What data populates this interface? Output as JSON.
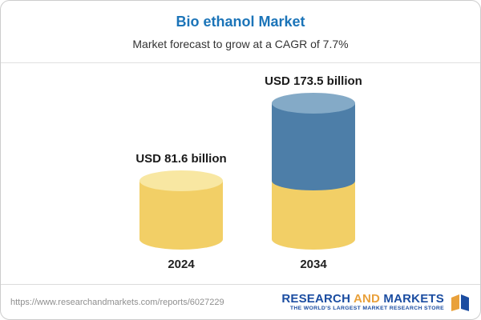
{
  "header": {
    "title": "Bio ethanol Market",
    "subtitle": "Market forecast to grow at a CAGR of 7.7%"
  },
  "chart_data": {
    "type": "bar",
    "variant": "3d-cylinder",
    "title": "Bio ethanol Market",
    "subtitle": "Market forecast to grow at a CAGR of 7.7%",
    "unit": "USD billion",
    "cagr": "7.7%",
    "categories": [
      "2024",
      "2034"
    ],
    "values": [
      81.6,
      173.5
    ],
    "bar_labels": [
      "USD 81.6 billion",
      "USD 173.5 billion"
    ],
    "axes_visible": false,
    "grid": false,
    "legend": false,
    "bars": [
      {
        "category": "2024",
        "label": "USD 81.6 billion",
        "total": 81.6,
        "segments": [
          {
            "name": "base-2024",
            "value": 81.6,
            "color": "#F2CF66",
            "top_color": "#F8E7A2"
          }
        ]
      },
      {
        "category": "2034",
        "label": "USD 173.5 billion",
        "total": 173.5,
        "segments": [
          {
            "name": "growth-2024-2034",
            "value": 91.9,
            "color": "#4D7EA8",
            "top_color": "#84AAC7"
          },
          {
            "name": "base-2024",
            "value": 81.6,
            "color": "#F2CF66"
          }
        ]
      }
    ],
    "colors": {
      "bar_yellow": "#F2CF66",
      "bar_yellow_top": "#F8E7A2",
      "bar_blue": "#4D7EA8",
      "bar_blue_top": "#84AAC7",
      "title_blue": "#1b74b8"
    }
  },
  "footer": {
    "url": "https://www.researchandmarkets.com/reports/6027229",
    "logo": {
      "word1": "RESEARCH",
      "word2": "AND",
      "word3": "MARKETS",
      "tagline": "THE WORLD'S LARGEST MARKET RESEARCH STORE",
      "blue": "#1b4da1",
      "gold": "#e9a13b"
    }
  }
}
